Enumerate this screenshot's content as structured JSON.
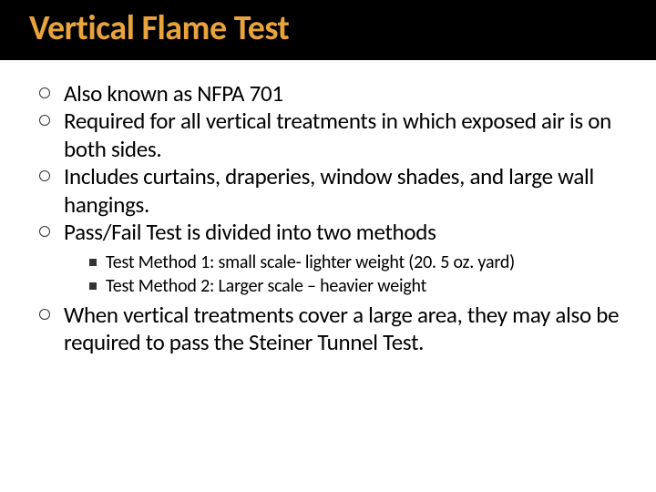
{
  "slide": {
    "title": "Vertical Flame Test",
    "title_color": "#e8a33d",
    "title_bg": "#000000",
    "title_fontsize": 38,
    "body_fontsize_l1": 25,
    "body_fontsize_l2": 20,
    "text_color": "#000000",
    "background_color": "#ffffff",
    "bullets": [
      {
        "text": "Also known as NFPA 701"
      },
      {
        "text": "Required for all vertical treatments in which exposed air is on both sides."
      },
      {
        "text": "Includes curtains, draperies, window shades, and large wall hangings."
      },
      {
        "text": "Pass/Fail Test is divided into two methods",
        "sub": [
          {
            "text": "Test Method 1:  small scale- lighter weight (20. 5 oz. yard)"
          },
          {
            "text": "Test Method 2:  Larger scale – heavier weight"
          }
        ]
      },
      {
        "text": "When vertical treatments cover a large area, they may also be required to pass the Steiner Tunnel Test."
      }
    ]
  }
}
